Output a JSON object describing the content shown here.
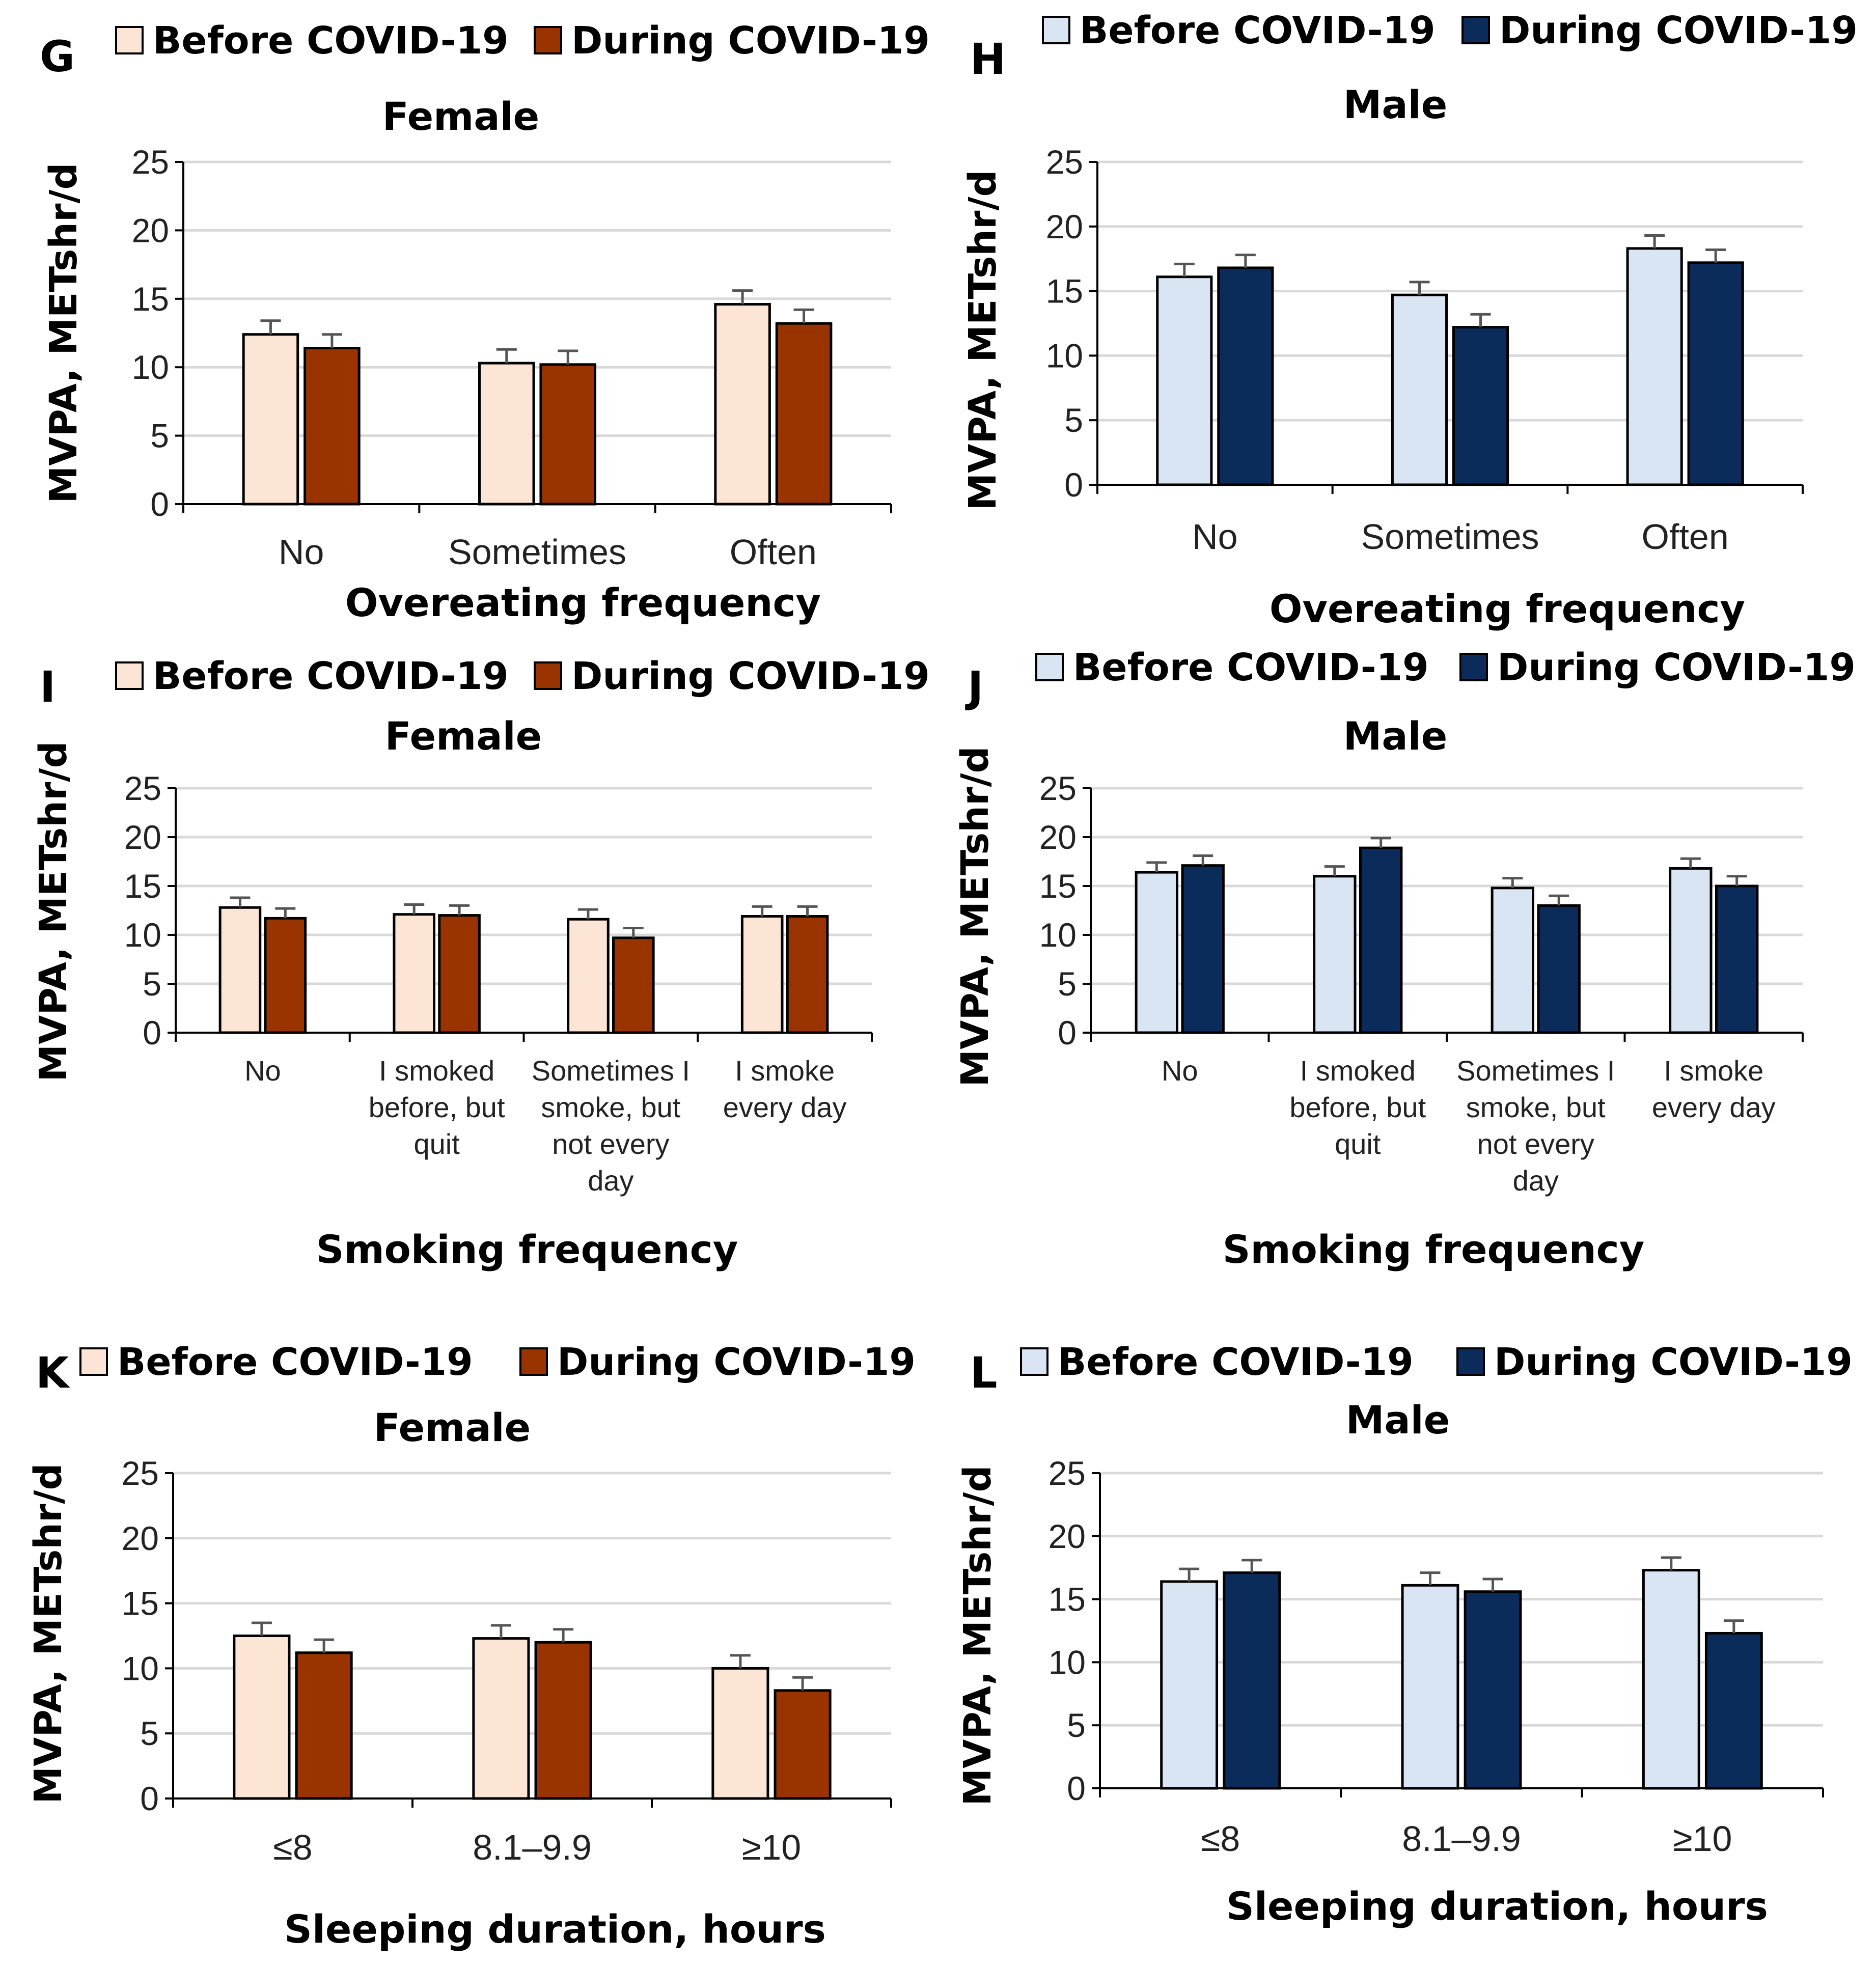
{
  "chart_data": [
    {
      "panel": "G",
      "type": "bar",
      "title": "Female",
      "xlabel": "Overeating frequency",
      "ylabel": "MVPA, METshr/d",
      "ylim": [
        0,
        25
      ],
      "yticks": [
        0,
        5,
        10,
        15,
        20,
        25
      ],
      "grid": true,
      "legend_position": "top",
      "categories": [
        "No",
        "Sometimes",
        "Often"
      ],
      "series": [
        {
          "name": "Before COVID-19",
          "color": "#FDE5D6",
          "values": [
            12.4,
            10.3,
            14.6
          ],
          "errors": [
            1.0,
            1.0,
            1.0
          ]
        },
        {
          "name": "During COVID-19",
          "color": "#993300",
          "values": [
            11.4,
            10.2,
            13.2
          ],
          "errors": [
            1.0,
            1.0,
            1.0
          ]
        }
      ]
    },
    {
      "panel": "H",
      "type": "bar",
      "title": "Male",
      "xlabel": "Overeating frequency",
      "ylabel": "MVPA, METshr/d",
      "ylim": [
        0,
        25
      ],
      "yticks": [
        0,
        5,
        10,
        15,
        20,
        25
      ],
      "grid": true,
      "legend_position": "top",
      "categories": [
        "No",
        "Sometimes",
        "Often"
      ],
      "series": [
        {
          "name": "Before COVID-19",
          "color": "#DAE5F3",
          "values": [
            16.1,
            14.7,
            18.3
          ],
          "errors": [
            1.0,
            1.0,
            1.0
          ]
        },
        {
          "name": "During COVID-19",
          "color": "#0B2C5A",
          "values": [
            16.8,
            12.2,
            17.2
          ],
          "errors": [
            1.0,
            1.0,
            1.0
          ]
        }
      ]
    },
    {
      "panel": "I",
      "type": "bar",
      "title": "Female",
      "xlabel": "Smoking frequency",
      "ylabel": "MVPA, METshr/d",
      "ylim": [
        0,
        25
      ],
      "yticks": [
        0,
        5,
        10,
        15,
        20,
        25
      ],
      "grid": true,
      "legend_position": "top",
      "categories": [
        "No",
        "I smoked before, but quit",
        "Sometimes I smoke, but not every day",
        "I smoke every day"
      ],
      "category_lines": [
        [
          "No"
        ],
        [
          "I smoked",
          "before, but",
          "quit"
        ],
        [
          "Sometimes I",
          "smoke, but",
          "not every",
          "day"
        ],
        [
          "I smoke",
          "every day"
        ]
      ],
      "series": [
        {
          "name": "Before COVID-19",
          "color": "#FDE5D6",
          "values": [
            12.8,
            12.1,
            11.6,
            11.9
          ],
          "errors": [
            1.0,
            1.0,
            1.0,
            1.0
          ]
        },
        {
          "name": "During COVID-19",
          "color": "#993300",
          "values": [
            11.7,
            12.0,
            9.7,
            11.9
          ],
          "errors": [
            1.0,
            1.0,
            1.0,
            1.0
          ]
        }
      ]
    },
    {
      "panel": "J",
      "type": "bar",
      "title": "Male",
      "xlabel": "Smoking frequency",
      "ylabel": "MVPA, METshr/d",
      "ylim": [
        0,
        25
      ],
      "yticks": [
        0,
        5,
        10,
        15,
        20,
        25
      ],
      "grid": true,
      "legend_position": "top",
      "categories": [
        "No",
        "I smoked before, but quit",
        "Sometimes I smoke, but not every day",
        "I smoke every day"
      ],
      "category_lines": [
        [
          "No"
        ],
        [
          "I smoked",
          "before, but",
          "quit"
        ],
        [
          "Sometimes I",
          "smoke, but",
          "not every",
          "day"
        ],
        [
          "I smoke",
          "every day"
        ]
      ],
      "series": [
        {
          "name": "Before COVID-19",
          "color": "#DAE5F3",
          "values": [
            16.4,
            16.0,
            14.8,
            16.8
          ],
          "errors": [
            1.0,
            1.0,
            1.0,
            1.0
          ]
        },
        {
          "name": "During COVID-19",
          "color": "#0B2C5A",
          "values": [
            17.1,
            18.9,
            13.0,
            15.0
          ],
          "errors": [
            1.0,
            1.0,
            1.0,
            1.0
          ]
        }
      ]
    },
    {
      "panel": "K",
      "type": "bar",
      "title": "Female",
      "xlabel": "Sleeping duration, hours",
      "ylabel": "MVPA, METshr/d",
      "ylim": [
        0,
        25
      ],
      "yticks": [
        0,
        5,
        10,
        15,
        20,
        25
      ],
      "grid": true,
      "legend_position": "top",
      "categories": [
        "≤8",
        "8.1–9.9",
        "≥10"
      ],
      "series": [
        {
          "name": "Before COVID-19",
          "color": "#FDE5D6",
          "values": [
            12.5,
            12.3,
            10.0
          ],
          "errors": [
            1.0,
            1.0,
            1.0
          ]
        },
        {
          "name": "During COVID-19",
          "color": "#993300",
          "values": [
            11.2,
            12.0,
            8.3
          ],
          "errors": [
            1.0,
            1.0,
            1.0
          ]
        }
      ]
    },
    {
      "panel": "L",
      "type": "bar",
      "title": "Male",
      "xlabel": "Sleeping duration, hours",
      "ylabel": "MVPA, METshr/d",
      "ylim": [
        0,
        25
      ],
      "yticks": [
        0,
        5,
        10,
        15,
        20,
        25
      ],
      "grid": true,
      "legend_position": "top",
      "categories": [
        "≤8",
        "8.1–9.9",
        "≥10"
      ],
      "series": [
        {
          "name": "Before COVID-19",
          "color": "#DAE5F3",
          "values": [
            16.4,
            16.1,
            17.3
          ],
          "errors": [
            1.0,
            1.0,
            1.0
          ]
        },
        {
          "name": "During COVID-19",
          "color": "#0B2C5A",
          "values": [
            17.1,
            15.6,
            12.3
          ],
          "errors": [
            1.0,
            1.0,
            1.0
          ]
        }
      ]
    }
  ]
}
